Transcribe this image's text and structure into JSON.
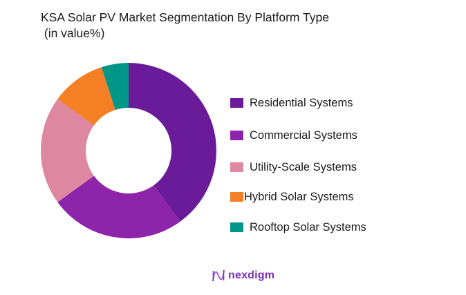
{
  "header": {
    "title": "KSA Solar PV Market Segmentation By Platform Type",
    "subtitle": " (in value%)"
  },
  "legend": {
    "items": [
      {
        "label": "Residential Systems",
        "color": "#6a1b9a"
      },
      {
        "label": "Commercial Systems",
        "color": "#8e24aa"
      },
      {
        "label": "Utility-Scale Systems",
        "color": "#de87a0"
      },
      {
        "label": "Hybrid Solar Systems",
        "color": "#f47f24"
      },
      {
        "label": "Rooftop Solar Systems",
        "color": "#009688"
      }
    ]
  },
  "logo": {
    "text": "nexdigm",
    "icon": "nexdigm-wave-icon",
    "color": "#7b2cbf"
  },
  "chart_data": {
    "type": "pie",
    "subtype": "donut",
    "title": "KSA Solar PV Market Segmentation By Platform Type (in value%)",
    "categories": [
      "Residential Systems",
      "Commercial Systems",
      "Utility-Scale Systems",
      "Hybrid Solar Systems",
      "Rooftop Solar Systems"
    ],
    "values": [
      40,
      25,
      20,
      10,
      5
    ],
    "colors": [
      "#6a1b9a",
      "#8e24aa",
      "#de87a0",
      "#f47f24",
      "#009688"
    ],
    "unit": "%",
    "start_angle": "12 o'clock, clockwise",
    "legend_position": "right",
    "data_labels": false
  }
}
